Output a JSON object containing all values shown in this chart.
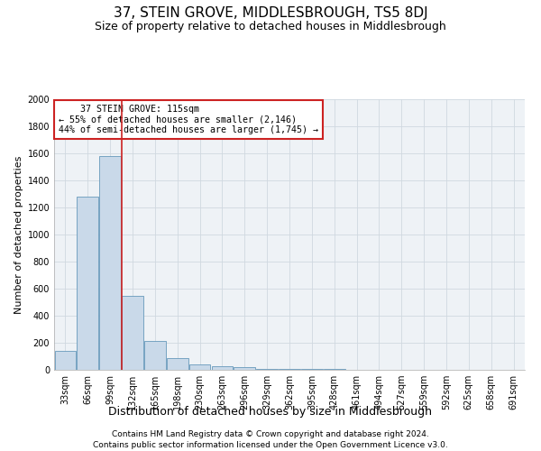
{
  "title": "37, STEIN GROVE, MIDDLESBROUGH, TS5 8DJ",
  "subtitle": "Size of property relative to detached houses in Middlesbrough",
  "xlabel": "Distribution of detached houses by size in Middlesbrough",
  "ylabel": "Number of detached properties",
  "footnote1": "Contains HM Land Registry data © Crown copyright and database right 2024.",
  "footnote2": "Contains public sector information licensed under the Open Government Licence v3.0.",
  "bar_color": "#c9d9e9",
  "bar_edge_color": "#6699bb",
  "annotation_line1": "    37 STEIN GROVE: 115sqm",
  "annotation_line2": "← 55% of detached houses are smaller (2,146)",
  "annotation_line3": "44% of semi-detached houses are larger (1,745) →",
  "annotation_box_color": "#ffffff",
  "annotation_box_edge_color": "#cc2222",
  "vline_color": "#cc2222",
  "vline_x_index": 2.5,
  "categories": [
    "33sqm",
    "66sqm",
    "99sqm",
    "132sqm",
    "165sqm",
    "198sqm",
    "230sqm",
    "263sqm",
    "296sqm",
    "329sqm",
    "362sqm",
    "395sqm",
    "428sqm",
    "461sqm",
    "494sqm",
    "527sqm",
    "559sqm",
    "592sqm",
    "625sqm",
    "658sqm",
    "691sqm"
  ],
  "values": [
    140,
    1280,
    1580,
    545,
    215,
    88,
    43,
    25,
    18,
    8,
    8,
    8,
    5,
    0,
    0,
    0,
    0,
    0,
    0,
    0,
    0
  ],
  "ylim": [
    0,
    2000
  ],
  "yticks": [
    0,
    200,
    400,
    600,
    800,
    1000,
    1200,
    1400,
    1600,
    1800,
    2000
  ],
  "grid_color": "#d0d8e0",
  "background_color": "#eef2f6",
  "title_fontsize": 11,
  "subtitle_fontsize": 9,
  "xlabel_fontsize": 9,
  "ylabel_fontsize": 8,
  "tick_fontsize": 7,
  "footnote_fontsize": 6.5
}
